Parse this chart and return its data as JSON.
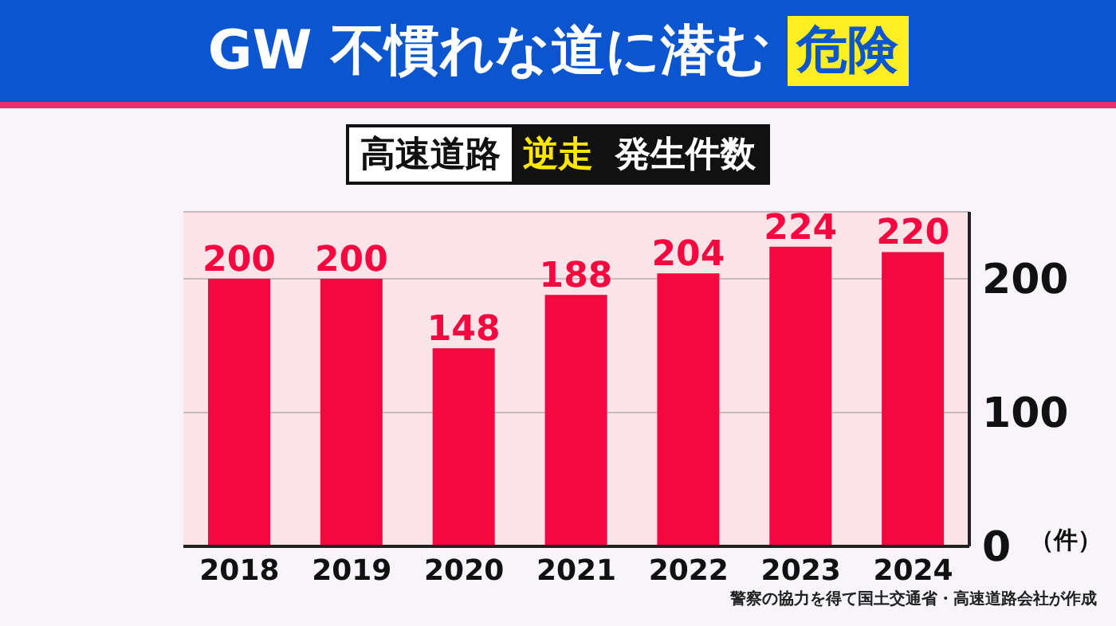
{
  "chart_data": {
    "type": "bar",
    "title": "GW 不慣れな道に潜む 危険",
    "subtitle": "高速道路 逆走 発生件数",
    "ylabel": "（件）",
    "categories": [
      "2018",
      "2019",
      "2020",
      "2021",
      "2022",
      "2023",
      "2024"
    ],
    "values": [
      200,
      200,
      148,
      188,
      204,
      224,
      220
    ],
    "color": "#f5073f",
    "ylim": [
      0,
      250
    ],
    "yticks": [
      0,
      100,
      200
    ],
    "grid": "y",
    "data_labels": true,
    "annotations": [
      "警察の協力を得て国土交通省・高速道路会社が作成"
    ]
  }
}
